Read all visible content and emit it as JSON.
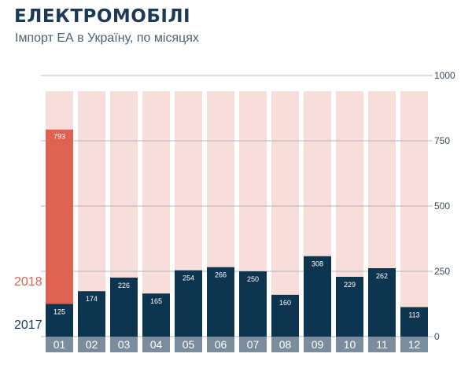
{
  "title": "ЕЛЕКТРОМОБІЛІ",
  "subtitle": "Імпорт ЕА в Україну, по місяцях",
  "colors": {
    "series_2017": "#0e3550",
    "series_2018": "#dd6251",
    "background_bar": "#f7dedb",
    "category_box": "#7b8d9c",
    "grid": "#9aa3ab"
  },
  "chart_data": {
    "type": "bar",
    "categories": [
      "01",
      "02",
      "03",
      "04",
      "05",
      "06",
      "07",
      "08",
      "09",
      "10",
      "11",
      "12"
    ],
    "series": [
      {
        "name": "2017",
        "values": [
          125,
          174,
          226,
          165,
          254,
          266,
          250,
          160,
          308,
          229,
          262,
          113
        ]
      },
      {
        "name": "2018",
        "values": [
          793,
          null,
          null,
          null,
          null,
          null,
          null,
          null,
          null,
          null,
          null,
          null
        ]
      }
    ],
    "data_labels_2017": [
      "125",
      "174",
      "226",
      "165",
      "254",
      "266",
      "250",
      "160",
      "308",
      "229",
      "262",
      "113"
    ],
    "data_labels_2018": [
      "793"
    ],
    "ylim": [
      0,
      1000
    ],
    "yticks": [
      0,
      250,
      500,
      750,
      1000
    ],
    "ytick_labels": [
      "0",
      "250",
      "500",
      "750",
      "1000"
    ],
    "grid": true,
    "legend": [
      "2018",
      "2017"
    ],
    "legend_position": "left"
  }
}
